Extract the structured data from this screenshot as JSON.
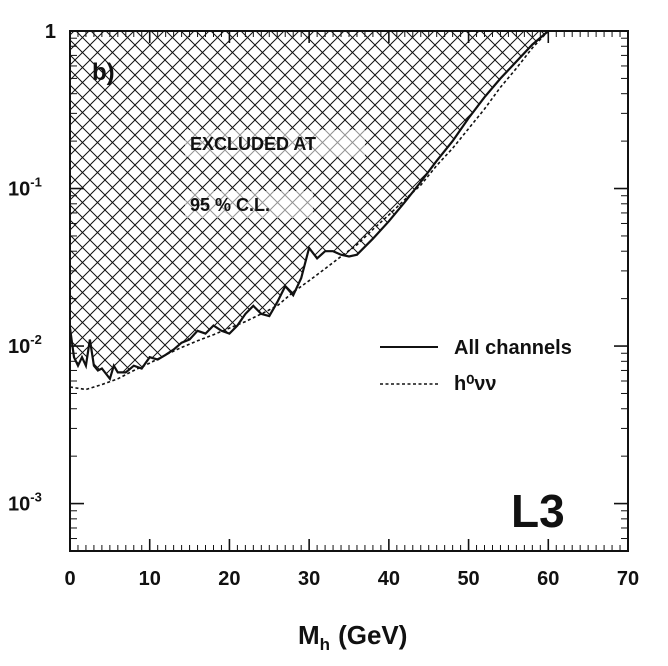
{
  "chart_data": {
    "type": "line",
    "panel_label": "b)",
    "experiment_logo": "L3",
    "xlabel_main": "M",
    "xlabel_sub": "h",
    "xlabel_unit": "(GeV)",
    "ylabel": "",
    "xlim": [
      0,
      70
    ],
    "ylim": [
      0.0005,
      1
    ],
    "yscale": "log",
    "x_ticks": [
      "0",
      "10",
      "20",
      "30",
      "40",
      "50",
      "60",
      "70"
    ],
    "y_ticks": [
      {
        "base": "1",
        "exp": ""
      },
      {
        "base": "10",
        "exp": "-1"
      },
      {
        "base": "10",
        "exp": "-2"
      },
      {
        "base": "10",
        "exp": "-3"
      }
    ],
    "excluded_region": {
      "line1": "EXCLUDED AT",
      "line2": "95 % C.L.",
      "fill": "cross-hatched"
    },
    "legend_position": "right",
    "series": [
      {
        "name": "All channels",
        "style": "solid",
        "x": [
          0,
          0.5,
          1,
          1.5,
          2,
          2.5,
          3,
          3.5,
          4,
          5,
          5.5,
          6,
          7,
          8,
          9,
          10,
          11,
          12,
          13,
          14,
          15,
          16,
          17,
          18,
          19,
          20,
          21,
          22,
          23,
          24,
          25,
          26,
          27,
          28,
          29,
          30,
          31,
          32,
          33,
          34,
          35,
          36,
          38,
          40,
          42,
          44,
          46,
          48,
          50,
          52,
          54,
          56,
          58,
          60
        ],
        "y": [
          0.013,
          0.0085,
          0.0075,
          0.0085,
          0.0075,
          0.011,
          0.0075,
          0.007,
          0.0072,
          0.0062,
          0.0075,
          0.0068,
          0.0068,
          0.0075,
          0.0072,
          0.0085,
          0.0082,
          0.0088,
          0.0095,
          0.0105,
          0.011,
          0.0125,
          0.012,
          0.0135,
          0.0125,
          0.012,
          0.0135,
          0.016,
          0.018,
          0.016,
          0.0155,
          0.019,
          0.024,
          0.021,
          0.027,
          0.042,
          0.036,
          0.04,
          0.04,
          0.038,
          0.037,
          0.038,
          0.048,
          0.062,
          0.082,
          0.11,
          0.15,
          0.2,
          0.28,
          0.38,
          0.5,
          0.64,
          0.82,
          1.0
        ]
      },
      {
        "name": "h⁰νν",
        "style": "dashed",
        "x": [
          0,
          2,
          4,
          6,
          8,
          10,
          12,
          14,
          16,
          18,
          20,
          22,
          24,
          26,
          28,
          30,
          32,
          34,
          36,
          38,
          40,
          42,
          44,
          46,
          48,
          50,
          52,
          54,
          56,
          58,
          60
        ],
        "y": [
          0.0055,
          0.0053,
          0.0057,
          0.0062,
          0.007,
          0.0078,
          0.0088,
          0.0098,
          0.0108,
          0.0118,
          0.013,
          0.0143,
          0.016,
          0.018,
          0.022,
          0.026,
          0.031,
          0.037,
          0.044,
          0.055,
          0.068,
          0.085,
          0.105,
          0.14,
          0.18,
          0.24,
          0.32,
          0.44,
          0.58,
          0.78,
          1.0
        ]
      }
    ]
  }
}
